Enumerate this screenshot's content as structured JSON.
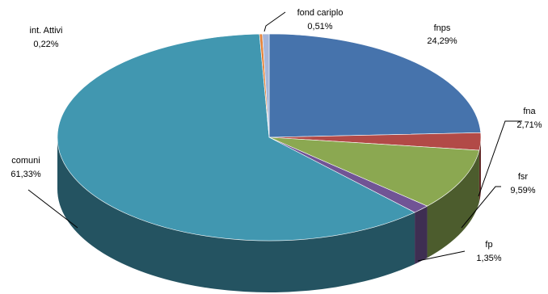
{
  "chart_data": {
    "type": "pie",
    "style": "3d",
    "title": "",
    "legend": "none",
    "data_labels": "category name and percentage",
    "slices": [
      {
        "name": "fnps",
        "value_label": "24,29%",
        "value": 24.29,
        "color": "#4673AC"
      },
      {
        "name": "fna",
        "value_label": "2,71%",
        "value": 2.71,
        "color": "#B24A47"
      },
      {
        "name": "fsr",
        "value_label": "9,59%",
        "value": 9.59,
        "color": "#8BA851"
      },
      {
        "name": "fp",
        "value_label": "1,35%",
        "value": 1.35,
        "color": "#715495"
      },
      {
        "name": "comuni",
        "value_label": "61,33%",
        "value": 61.33,
        "color": "#4197B0"
      },
      {
        "name": "int. Attivi",
        "value_label": "0,22%",
        "value": 0.22,
        "color": "#E4833A"
      },
      {
        "name": "fond cariplo",
        "value_label": "0,51%",
        "value": 0.51,
        "color": "#A5B6DA"
      }
    ]
  }
}
